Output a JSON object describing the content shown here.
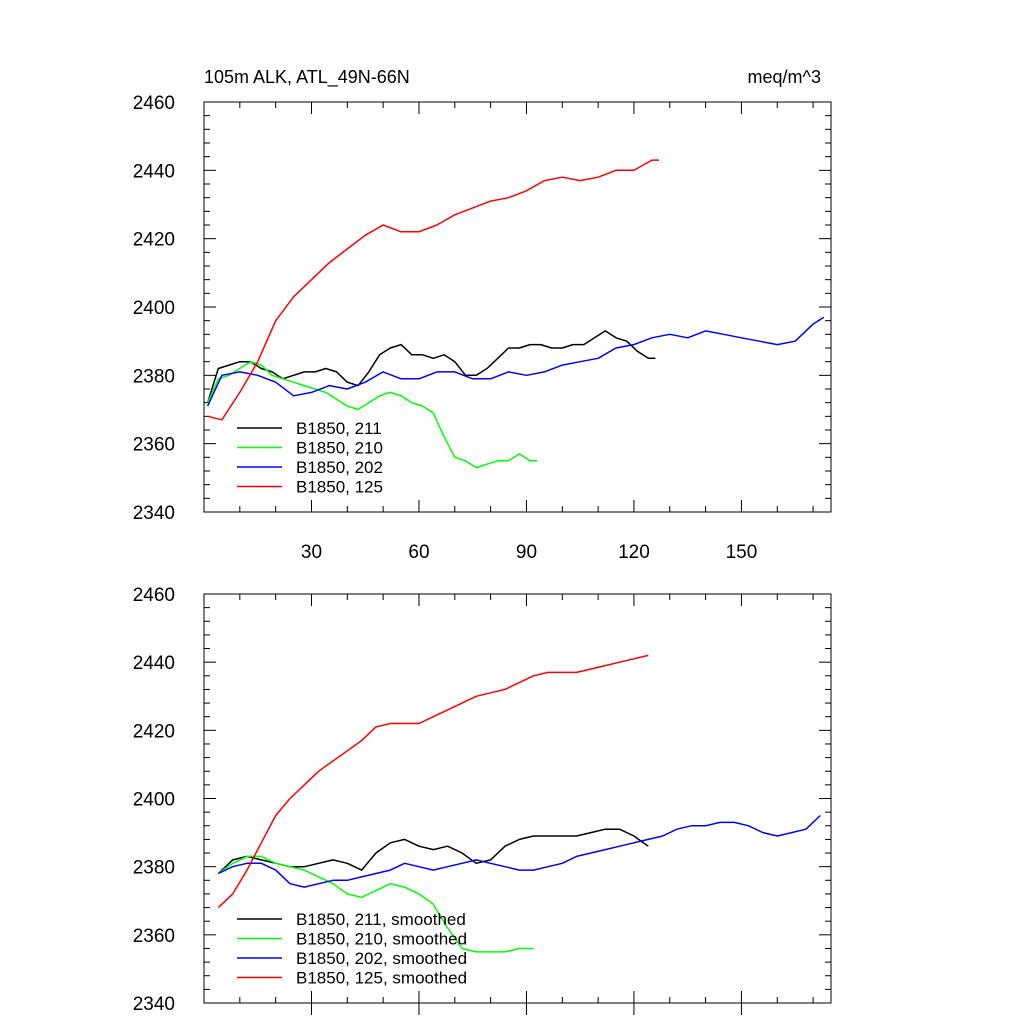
{
  "chart_data": [
    {
      "type": "line",
      "title": "105m ALK, ATL_49N-66N",
      "units": "meq/m^3",
      "xlabel": "",
      "ylabel": "",
      "xlim": [
        0,
        175
      ],
      "ylim": [
        2340,
        2460
      ],
      "xticks": [
        30,
        60,
        90,
        120,
        150
      ],
      "xtick_labels": [
        "30",
        "60",
        "90",
        "120",
        "150"
      ],
      "yticks": [
        2340,
        2360,
        2380,
        2400,
        2420,
        2440,
        2460
      ],
      "ytick_labels": [
        "2340",
        "2360",
        "2380",
        "2400",
        "2420",
        "2440",
        "2460"
      ],
      "legend_position": "bottom-left",
      "series": [
        {
          "name": "B1850, 211",
          "color": "#000000",
          "x": [
            1,
            4,
            7,
            10,
            13,
            16,
            19,
            22,
            25,
            28,
            31,
            34,
            37,
            40,
            43,
            46,
            49,
            52,
            55,
            58,
            61,
            64,
            67,
            70,
            73,
            76,
            79,
            82,
            85,
            88,
            91,
            94,
            97,
            100,
            103,
            106,
            109,
            112,
            115,
            118,
            121,
            124,
            126
          ],
          "y": [
            2372,
            2382,
            2383,
            2384,
            2384,
            2382,
            2381,
            2379,
            2380,
            2381,
            2381,
            2382,
            2381,
            2378,
            2377,
            2381,
            2386,
            2388,
            2389,
            2386,
            2386,
            2385,
            2386,
            2384,
            2380,
            2380,
            2382,
            2385,
            2388,
            2388,
            2389,
            2389,
            2388,
            2388,
            2389,
            2389,
            2391,
            2393,
            2391,
            2390,
            2387,
            2385,
            2385
          ]
        },
        {
          "name": "B1850, 210",
          "color": "#00ff00",
          "x": [
            1,
            4,
            7,
            10,
            13,
            16,
            19,
            22,
            25,
            28,
            31,
            34,
            37,
            40,
            43,
            46,
            49,
            52,
            55,
            58,
            61,
            64,
            67,
            70,
            73,
            76,
            79,
            82,
            85,
            88,
            91,
            93
          ],
          "y": [
            2372,
            2379,
            2380,
            2382,
            2384,
            2383,
            2380,
            2379,
            2378,
            2377,
            2376,
            2375,
            2373,
            2371,
            2370,
            2372,
            2374,
            2375,
            2374,
            2372,
            2371,
            2369,
            2362,
            2356,
            2355,
            2353,
            2354,
            2355,
            2355,
            2357,
            2355,
            2355
          ]
        },
        {
          "name": "B1850, 202",
          "color": "#0000ff",
          "x": [
            1,
            5,
            10,
            15,
            20,
            25,
            30,
            35,
            40,
            45,
            50,
            55,
            60,
            65,
            70,
            75,
            80,
            85,
            90,
            95,
            100,
            105,
            110,
            115,
            120,
            125,
            130,
            135,
            140,
            145,
            150,
            155,
            160,
            165,
            170,
            173
          ],
          "y": [
            2371,
            2380,
            2381,
            2380,
            2378,
            2374,
            2375,
            2377,
            2376,
            2378,
            2381,
            2379,
            2379,
            2381,
            2381,
            2379,
            2379,
            2381,
            2380,
            2381,
            2383,
            2384,
            2385,
            2388,
            2389,
            2391,
            2392,
            2391,
            2393,
            2392,
            2391,
            2390,
            2389,
            2390,
            2395,
            2397
          ]
        },
        {
          "name": "B1850, 125",
          "color": "#ff0000",
          "x": [
            1,
            5,
            10,
            15,
            20,
            25,
            30,
            35,
            40,
            45,
            50,
            55,
            60,
            65,
            70,
            75,
            80,
            85,
            90,
            95,
            100,
            105,
            110,
            115,
            120,
            125,
            127
          ],
          "y": [
            2368,
            2367,
            2375,
            2384,
            2396,
            2403,
            2408,
            2413,
            2417,
            2421,
            2424,
            2422,
            2422,
            2424,
            2427,
            2429,
            2431,
            2432,
            2434,
            2437,
            2438,
            2437,
            2438,
            2440,
            2440,
            2443,
            2443
          ]
        }
      ]
    },
    {
      "type": "line",
      "title": "",
      "xlabel": "",
      "ylabel": "",
      "xlim": [
        0,
        175
      ],
      "ylim": [
        2340,
        2460
      ],
      "xticks": [
        30,
        60,
        90,
        120,
        150
      ],
      "xtick_labels": [],
      "yticks": [
        2340,
        2360,
        2380,
        2400,
        2420,
        2440,
        2460
      ],
      "ytick_labels": [
        "2340",
        "2360",
        "2380",
        "2400",
        "2420",
        "2440",
        "2460"
      ],
      "legend_position": "bottom-left",
      "series": [
        {
          "name": "B1850, 211, smoothed",
          "color": "#000000",
          "x": [
            4,
            8,
            12,
            16,
            20,
            24,
            28,
            32,
            36,
            40,
            44,
            48,
            52,
            56,
            60,
            64,
            68,
            72,
            76,
            80,
            84,
            88,
            92,
            96,
            100,
            104,
            108,
            112,
            116,
            120,
            124
          ],
          "y": [
            2378,
            2382,
            2383,
            2382,
            2381,
            2380,
            2380,
            2381,
            2382,
            2381,
            2379,
            2384,
            2387,
            2388,
            2386,
            2385,
            2386,
            2384,
            2381,
            2382,
            2386,
            2388,
            2389,
            2389,
            2389,
            2389,
            2390,
            2391,
            2391,
            2389,
            2386
          ]
        },
        {
          "name": "B1850, 210, smoothed",
          "color": "#00ff00",
          "x": [
            4,
            8,
            12,
            16,
            20,
            24,
            28,
            32,
            36,
            40,
            44,
            48,
            52,
            56,
            60,
            64,
            68,
            72,
            76,
            80,
            84,
            88,
            92
          ],
          "y": [
            2378,
            2381,
            2383,
            2383,
            2381,
            2380,
            2379,
            2377,
            2375,
            2372,
            2371,
            2373,
            2375,
            2374,
            2372,
            2369,
            2362,
            2356,
            2355,
            2355,
            2355,
            2356,
            2356
          ]
        },
        {
          "name": "B1850, 202, smoothed",
          "color": "#0000ff",
          "x": [
            4,
            8,
            12,
            16,
            20,
            24,
            28,
            32,
            36,
            40,
            44,
            48,
            52,
            56,
            60,
            64,
            68,
            72,
            76,
            80,
            84,
            88,
            92,
            96,
            100,
            104,
            108,
            112,
            116,
            120,
            124,
            128,
            132,
            136,
            140,
            144,
            148,
            152,
            156,
            160,
            164,
            168,
            172
          ],
          "y": [
            2378,
            2380,
            2381,
            2381,
            2379,
            2375,
            2374,
            2375,
            2376,
            2376,
            2377,
            2378,
            2379,
            2381,
            2380,
            2379,
            2380,
            2381,
            2382,
            2381,
            2380,
            2379,
            2379,
            2380,
            2381,
            2383,
            2384,
            2385,
            2386,
            2387,
            2388,
            2389,
            2391,
            2392,
            2392,
            2393,
            2393,
            2392,
            2390,
            2389,
            2390,
            2391,
            2395
          ]
        },
        {
          "name": "B1850, 125, smoothed",
          "color": "#ff0000",
          "x": [
            4,
            8,
            12,
            16,
            20,
            24,
            28,
            32,
            36,
            40,
            44,
            48,
            52,
            56,
            60,
            64,
            68,
            72,
            76,
            80,
            84,
            88,
            92,
            96,
            100,
            104,
            108,
            112,
            116,
            120,
            124
          ],
          "y": [
            2368,
            2372,
            2379,
            2387,
            2395,
            2400,
            2404,
            2408,
            2411,
            2414,
            2417,
            2421,
            2422,
            2422,
            2422,
            2424,
            2426,
            2428,
            2430,
            2431,
            2432,
            2434,
            2436,
            2437,
            2437,
            2437,
            2438,
            2439,
            2440,
            2441,
            2442
          ]
        }
      ]
    }
  ]
}
